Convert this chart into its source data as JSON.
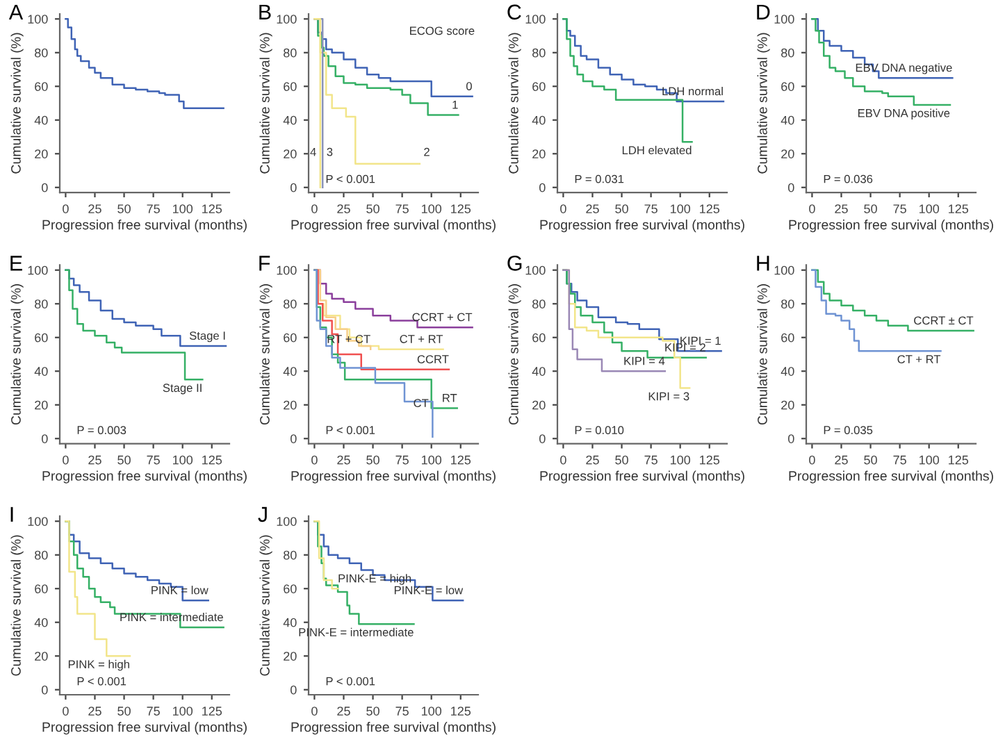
{
  "chart_data": [
    {
      "type": "step",
      "title": "A",
      "xlabel": "Progression free survival (months)",
      "ylabel": "Cumulative survival (%)",
      "xlim": [
        -5,
        140
      ],
      "ylim": [
        -3,
        103
      ],
      "xticks": [
        0,
        25,
        50,
        75,
        100,
        125
      ],
      "yticks": [
        0,
        20,
        40,
        60,
        80,
        100
      ],
      "series": [
        {
          "color": "#3f63b5",
          "x": [
            0,
            2,
            5,
            8,
            10,
            13,
            20,
            25,
            30,
            40,
            50,
            60,
            70,
            80,
            85,
            97,
            101,
            135
          ],
          "values": [
            100,
            95,
            88,
            82,
            78,
            75,
            71,
            68,
            65,
            61,
            59,
            58,
            57,
            56,
            55,
            51,
            47,
            47
          ]
        }
      ]
    },
    {
      "type": "step",
      "title": "B",
      "xlabel": "Progression free survival (months)",
      "ylabel": "Cumulative survival (%)",
      "xlim": [
        -5,
        140
      ],
      "ylim": [
        -3,
        103
      ],
      "xticks": [
        0,
        25,
        50,
        75,
        100,
        125
      ],
      "yticks": [
        0,
        20,
        40,
        60,
        80,
        100
      ],
      "series": [
        {
          "name": "0",
          "color": "#3f63b5",
          "x": [
            0,
            3,
            6,
            10,
            15,
            25,
            35,
            45,
            55,
            65,
            100,
            135
          ],
          "values": [
            100,
            92,
            88,
            82,
            80,
            76,
            71,
            67,
            65,
            63,
            54,
            54
          ]
        },
        {
          "name": "1",
          "color": "#35b065",
          "x": [
            0,
            3,
            6,
            8,
            12,
            18,
            25,
            35,
            45,
            65,
            75,
            82,
            97,
            123
          ],
          "values": [
            100,
            90,
            83,
            78,
            72,
            66,
            62,
            61,
            59,
            58,
            55,
            50,
            43,
            43
          ]
        },
        {
          "name": "2",
          "color": "#f2e58a",
          "x": [
            0,
            5,
            10,
            15,
            27,
            35,
            90
          ],
          "values": [
            100,
            80,
            55,
            47,
            42,
            14,
            14
          ]
        },
        {
          "name": "3",
          "color": "#8a93b8",
          "x": [
            0,
            7,
            7
          ],
          "values": [
            100,
            0,
            0
          ]
        },
        {
          "name": "4",
          "color": "#f2e58a",
          "x": [
            0,
            5,
            5
          ],
          "values": [
            100,
            0,
            0
          ]
        }
      ],
      "annotations": [
        "P < 0.001",
        "ECOG score"
      ]
    },
    {
      "type": "step",
      "title": "C",
      "xlabel": "Progression free survival (months)",
      "ylabel": "Cumulative survival (%)",
      "xlim": [
        -5,
        140
      ],
      "ylim": [
        -3,
        103
      ],
      "xticks": [
        0,
        25,
        50,
        75,
        100,
        125
      ],
      "yticks": [
        0,
        20,
        40,
        60,
        80,
        100
      ],
      "series": [
        {
          "name": "LDH normal",
          "color": "#3f63b5",
          "x": [
            0,
            3,
            6,
            10,
            15,
            20,
            30,
            40,
            50,
            60,
            70,
            80,
            88,
            97,
            137
          ],
          "values": [
            100,
            93,
            90,
            84,
            78,
            76,
            71,
            67,
            64,
            61,
            60,
            58,
            56,
            51,
            51
          ]
        },
        {
          "name": "LDH elevated",
          "color": "#35b065",
          "x": [
            0,
            3,
            6,
            9,
            12,
            17,
            25,
            35,
            45,
            102,
            110
          ],
          "values": [
            100,
            88,
            78,
            72,
            67,
            63,
            60,
            58,
            52,
            27,
            27
          ]
        }
      ],
      "annotations": [
        "P = 0.031"
      ]
    },
    {
      "type": "step",
      "title": "D",
      "xlabel": "Progression free survival (months)",
      "ylabel": "Cumulative survival (%)",
      "xlim": [
        -5,
        140
      ],
      "ylim": [
        -3,
        103
      ],
      "xticks": [
        0,
        25,
        50,
        75,
        100,
        125
      ],
      "yticks": [
        0,
        20,
        40,
        60,
        80,
        100
      ],
      "series": [
        {
          "name": "EBV DNA negative",
          "color": "#3f63b5",
          "x": [
            0,
            5,
            10,
            15,
            25,
            35,
            45,
            52,
            57,
            120
          ],
          "values": [
            100,
            93,
            87,
            84,
            81,
            77,
            73,
            69,
            65,
            65
          ]
        },
        {
          "name": "EBV DNA positive",
          "color": "#35b065",
          "x": [
            0,
            3,
            6,
            10,
            15,
            20,
            28,
            35,
            45,
            60,
            65,
            87,
            118
          ],
          "values": [
            100,
            93,
            86,
            78,
            71,
            69,
            65,
            60,
            57,
            56,
            54,
            49,
            49
          ]
        }
      ],
      "annotations": [
        "P = 0.036"
      ]
    },
    {
      "type": "step",
      "title": "E",
      "xlabel": "Progression free survival (months)",
      "ylabel": "Cumulative survival (%)",
      "xlim": [
        -5,
        140
      ],
      "ylim": [
        -3,
        103
      ],
      "xticks": [
        0,
        25,
        50,
        75,
        100,
        125
      ],
      "yticks": [
        0,
        20,
        40,
        60,
        80,
        100
      ],
      "series": [
        {
          "name": "Stage I",
          "color": "#3f63b5",
          "x": [
            0,
            3,
            7,
            12,
            20,
            30,
            40,
            50,
            60,
            75,
            82,
            98,
            137
          ],
          "values": [
            100,
            95,
            91,
            87,
            82,
            76,
            71,
            69,
            67,
            65,
            61,
            55,
            55
          ]
        },
        {
          "name": "Stage II",
          "color": "#35b065",
          "x": [
            0,
            3,
            6,
            10,
            15,
            25,
            35,
            42,
            48,
            102,
            117
          ],
          "values": [
            100,
            88,
            77,
            68,
            64,
            61,
            57,
            54,
            51,
            35,
            35
          ]
        }
      ],
      "annotations": [
        "P = 0.003"
      ]
    },
    {
      "type": "step",
      "title": "F",
      "xlabel": "Progression free survival (months)",
      "ylabel": "Cumulative survival (%)",
      "xlim": [
        -5,
        140
      ],
      "ylim": [
        -3,
        103
      ],
      "xticks": [
        0,
        25,
        50,
        75,
        100,
        125
      ],
      "yticks": [
        0,
        20,
        40,
        60,
        80,
        100
      ],
      "series": [
        {
          "name": "CCRT + CT",
          "color": "#8b3f9c",
          "x": [
            0,
            5,
            10,
            15,
            25,
            35,
            50,
            65,
            88,
            135
          ],
          "values": [
            100,
            92,
            86,
            83,
            81,
            77,
            73,
            70,
            66,
            66
          ]
        },
        {
          "name": "CT + RT",
          "color": "#f5e68f",
          "x": [
            0,
            3,
            8,
            22,
            30,
            40,
            55,
            110
          ],
          "values": [
            100,
            80,
            73,
            65,
            60,
            55,
            53,
            53
          ]
        },
        {
          "name": "RT + CT",
          "color": "#f7cf8a",
          "x": [
            0,
            5,
            10,
            18,
            28,
            38,
            48
          ],
          "values": [
            100,
            82,
            72,
            65,
            58,
            55,
            53
          ]
        },
        {
          "name": "CCRT",
          "color": "#f05050",
          "x": [
            0,
            3,
            7,
            15,
            20,
            40,
            115
          ],
          "values": [
            100,
            80,
            70,
            62,
            50,
            41,
            41
          ]
        },
        {
          "name": "RT",
          "color": "#35b065",
          "x": [
            0,
            2,
            5,
            10,
            15,
            20,
            26,
            100,
            122
          ],
          "values": [
            100,
            78,
            66,
            60,
            50,
            45,
            35,
            18,
            18
          ]
        },
        {
          "name": "CT",
          "color": "#6f93d3",
          "x": [
            0,
            2,
            5,
            10,
            15,
            22,
            52,
            77,
            101,
            101
          ],
          "values": [
            100,
            70,
            65,
            55,
            48,
            42,
            33,
            22,
            1,
            1
          ]
        }
      ],
      "annotations": [
        "P < 0.001"
      ]
    },
    {
      "type": "step",
      "title": "G",
      "xlabel": "Progression free survival (months)",
      "ylabel": "Cumulative survival (%)",
      "xlim": [
        -5,
        140
      ],
      "ylim": [
        -3,
        103
      ],
      "xticks": [
        0,
        25,
        50,
        75,
        100,
        125
      ],
      "yticks": [
        0,
        20,
        40,
        60,
        80,
        100
      ],
      "series": [
        {
          "name": "KIPI = 1",
          "color": "#3f63b5",
          "x": [
            0,
            3,
            7,
            12,
            20,
            30,
            45,
            55,
            65,
            82,
            98,
            135
          ],
          "values": [
            100,
            92,
            87,
            82,
            78,
            72,
            69,
            68,
            65,
            59,
            52,
            52
          ]
        },
        {
          "name": "KIPI = 2",
          "color": "#35b065",
          "x": [
            0,
            3,
            6,
            10,
            15,
            25,
            35,
            42,
            50,
            72,
            122
          ],
          "values": [
            100,
            92,
            86,
            78,
            73,
            69,
            63,
            57,
            52,
            48,
            48
          ]
        },
        {
          "name": "KIPI = 3",
          "color": "#f2e58a",
          "x": [
            0,
            5,
            10,
            20,
            30,
            85,
            95,
            100,
            108
          ],
          "values": [
            100,
            80,
            66,
            64,
            60,
            58,
            48,
            30,
            30
          ]
        },
        {
          "name": "KIPI = 4",
          "color": "#9a88b5",
          "x": [
            0,
            5,
            8,
            12,
            33,
            87
          ],
          "values": [
            100,
            65,
            53,
            47,
            40,
            40
          ]
        }
      ],
      "annotations": [
        "P = 0.010"
      ]
    },
    {
      "type": "step",
      "title": "H",
      "xlabel": "Progression free survival (months)",
      "ylabel": "Cumulative survival (%)",
      "xlim": [
        -5,
        140
      ],
      "ylim": [
        -3,
        103
      ],
      "xticks": [
        0,
        25,
        50,
        75,
        100,
        125
      ],
      "yticks": [
        0,
        20,
        40,
        60,
        80,
        100
      ],
      "series": [
        {
          "name": "CCRT ± CT",
          "color": "#35b065",
          "x": [
            0,
            5,
            10,
            15,
            25,
            35,
            45,
            55,
            65,
            82,
            138
          ],
          "values": [
            100,
            93,
            86,
            82,
            79,
            76,
            73,
            70,
            67,
            64,
            64
          ]
        },
        {
          "name": "CT + RT",
          "color": "#6f93d3",
          "x": [
            0,
            3,
            8,
            12,
            20,
            25,
            32,
            36,
            40,
            110
          ],
          "values": [
            100,
            90,
            82,
            74,
            73,
            70,
            65,
            58,
            52,
            52
          ]
        }
      ],
      "annotations": [
        "P = 0.035"
      ]
    },
    {
      "type": "step",
      "title": "I",
      "xlabel": "Progression free survival (months)",
      "ylabel": "Cumulative survival (%)",
      "xlim": [
        -5,
        140
      ],
      "ylim": [
        -3,
        103
      ],
      "xticks": [
        0,
        25,
        50,
        75,
        100,
        125
      ],
      "yticks": [
        0,
        20,
        40,
        60,
        80,
        100
      ],
      "series": [
        {
          "name": "PINK = low",
          "color": "#3f63b5",
          "x": [
            0,
            3,
            7,
            12,
            20,
            30,
            40,
            50,
            60,
            70,
            80,
            90,
            100,
            122
          ],
          "values": [
            100,
            92,
            88,
            81,
            78,
            75,
            72,
            69,
            67,
            65,
            63,
            61,
            53,
            53
          ]
        },
        {
          "name": "PINK = intermediate",
          "color": "#35b065",
          "x": [
            0,
            3,
            7,
            10,
            15,
            20,
            25,
            30,
            38,
            42,
            98,
            135
          ],
          "values": [
            100,
            88,
            80,
            72,
            67,
            60,
            55,
            52,
            49,
            45,
            37,
            37
          ]
        },
        {
          "name": "PINK = high",
          "color": "#f2e58a",
          "x": [
            0,
            3,
            8,
            10,
            25,
            35,
            55
          ],
          "values": [
            100,
            70,
            55,
            45,
            30,
            20,
            20
          ]
        }
      ],
      "annotations": [
        "P < 0.001"
      ]
    },
    {
      "type": "step",
      "title": "J",
      "xlabel": "Progression free survival (months)",
      "ylabel": "Cumulative survival (%)",
      "xlim": [
        -5,
        140
      ],
      "ylim": [
        -3,
        103
      ],
      "xticks": [
        0,
        25,
        50,
        75,
        100,
        125
      ],
      "yticks": [
        0,
        20,
        40,
        60,
        80,
        100
      ],
      "series": [
        {
          "name": "PINK-E = low",
          "color": "#3f63b5",
          "x": [
            0,
            3,
            8,
            12,
            20,
            30,
            40,
            50,
            60,
            86,
            101,
            127
          ],
          "values": [
            100,
            92,
            85,
            80,
            78,
            75,
            71,
            68,
            65,
            61,
            53,
            53
          ]
        },
        {
          "name": "PINK-E = intermediate",
          "color": "#35b065",
          "x": [
            0,
            3,
            6,
            8,
            10,
            20,
            28,
            30,
            38,
            85
          ],
          "values": [
            100,
            85,
            75,
            66,
            62,
            58,
            50,
            45,
            39,
            39
          ]
        },
        {
          "name": "PINK-E = high",
          "color": "#f2e58a",
          "x": [
            0,
            4,
            8,
            15,
            20
          ],
          "values": [
            100,
            78,
            65,
            60,
            60
          ]
        }
      ],
      "annotations": [
        "P < 0.001"
      ]
    }
  ]
}
